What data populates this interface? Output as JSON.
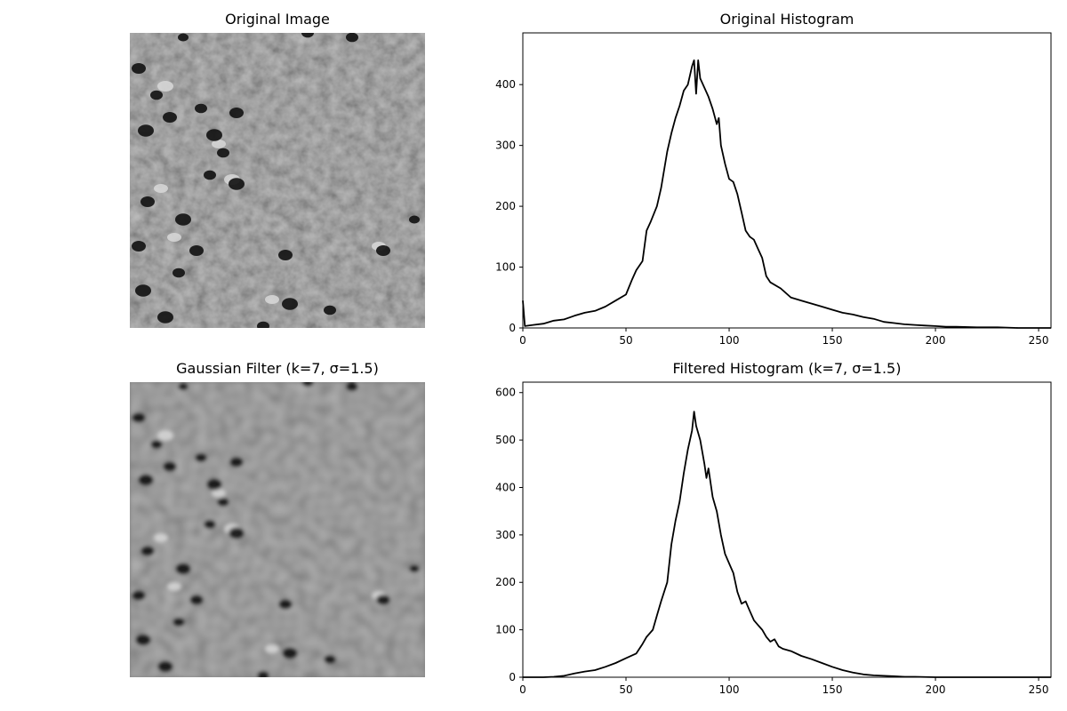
{
  "panels": {
    "original_image": {
      "title": "Original Image"
    },
    "gaussian_image": {
      "title": "Gaussian Filter (k=7, σ=1.5)"
    }
  },
  "chart_data": [
    {
      "type": "line",
      "title": "Original Histogram",
      "xlabel": "",
      "ylabel": "",
      "xlim": [
        0,
        256
      ],
      "ylim": [
        0,
        485
      ],
      "xticks": [
        0,
        50,
        100,
        150,
        200,
        250
      ],
      "yticks": [
        0,
        100,
        200,
        300,
        400
      ],
      "grid": false,
      "line_color": "#000000",
      "series": [
        {
          "points": [
            [
              0,
              45
            ],
            [
              1,
              3
            ],
            [
              5,
              5
            ],
            [
              10,
              7
            ],
            [
              15,
              12
            ],
            [
              20,
              14
            ],
            [
              25,
              20
            ],
            [
              30,
              25
            ],
            [
              35,
              28
            ],
            [
              40,
              35
            ],
            [
              45,
              45
            ],
            [
              50,
              55
            ],
            [
              53,
              80
            ],
            [
              55,
              95
            ],
            [
              58,
              110
            ],
            [
              60,
              160
            ],
            [
              62,
              175
            ],
            [
              65,
              200
            ],
            [
              67,
              230
            ],
            [
              70,
              290
            ],
            [
              72,
              320
            ],
            [
              74,
              345
            ],
            [
              76,
              365
            ],
            [
              78,
              390
            ],
            [
              80,
              400
            ],
            [
              82,
              430
            ],
            [
              83,
              440
            ],
            [
              84,
              385
            ],
            [
              85,
              440
            ],
            [
              86,
              410
            ],
            [
              88,
              395
            ],
            [
              90,
              380
            ],
            [
              92,
              360
            ],
            [
              94,
              335
            ],
            [
              95,
              345
            ],
            [
              96,
              300
            ],
            [
              98,
              270
            ],
            [
              100,
              245
            ],
            [
              102,
              240
            ],
            [
              104,
              220
            ],
            [
              106,
              190
            ],
            [
              108,
              160
            ],
            [
              110,
              150
            ],
            [
              112,
              145
            ],
            [
              114,
              130
            ],
            [
              116,
              115
            ],
            [
              118,
              85
            ],
            [
              120,
              75
            ],
            [
              125,
              65
            ],
            [
              130,
              50
            ],
            [
              135,
              45
            ],
            [
              140,
              40
            ],
            [
              145,
              35
            ],
            [
              150,
              30
            ],
            [
              155,
              25
            ],
            [
              160,
              22
            ],
            [
              165,
              18
            ],
            [
              170,
              15
            ],
            [
              175,
              10
            ],
            [
              180,
              8
            ],
            [
              185,
              6
            ],
            [
              190,
              5
            ],
            [
              195,
              4
            ],
            [
              200,
              3
            ],
            [
              205,
              2
            ],
            [
              210,
              2
            ],
            [
              220,
              1
            ],
            [
              230,
              1
            ],
            [
              240,
              0
            ],
            [
              256,
              0
            ]
          ]
        }
      ]
    },
    {
      "type": "line",
      "title": "Filtered Histogram (k=7, σ=1.5)",
      "xlabel": "",
      "ylabel": "",
      "xlim": [
        0,
        256
      ],
      "ylim": [
        0,
        622
      ],
      "xticks": [
        0,
        50,
        100,
        150,
        200,
        250
      ],
      "yticks": [
        0,
        100,
        200,
        300,
        400,
        500,
        600
      ],
      "grid": false,
      "line_color": "#000000",
      "series": [
        {
          "points": [
            [
              0,
              0
            ],
            [
              10,
              0
            ],
            [
              15,
              1
            ],
            [
              20,
              3
            ],
            [
              25,
              8
            ],
            [
              30,
              12
            ],
            [
              35,
              15
            ],
            [
              40,
              22
            ],
            [
              45,
              30
            ],
            [
              50,
              40
            ],
            [
              55,
              50
            ],
            [
              58,
              70
            ],
            [
              60,
              85
            ],
            [
              63,
              100
            ],
            [
              65,
              130
            ],
            [
              67,
              160
            ],
            [
              70,
              200
            ],
            [
              72,
              280
            ],
            [
              74,
              330
            ],
            [
              76,
              370
            ],
            [
              78,
              430
            ],
            [
              80,
              480
            ],
            [
              82,
              520
            ],
            [
              83,
              560
            ],
            [
              84,
              530
            ],
            [
              86,
              500
            ],
            [
              88,
              450
            ],
            [
              89,
              420
            ],
            [
              90,
              440
            ],
            [
              92,
              380
            ],
            [
              94,
              350
            ],
            [
              96,
              300
            ],
            [
              98,
              260
            ],
            [
              100,
              240
            ],
            [
              102,
              220
            ],
            [
              104,
              180
            ],
            [
              106,
              155
            ],
            [
              108,
              160
            ],
            [
              110,
              140
            ],
            [
              112,
              120
            ],
            [
              114,
              110
            ],
            [
              116,
              100
            ],
            [
              118,
              85
            ],
            [
              120,
              75
            ],
            [
              122,
              80
            ],
            [
              124,
              65
            ],
            [
              126,
              60
            ],
            [
              130,
              55
            ],
            [
              135,
              45
            ],
            [
              140,
              38
            ],
            [
              145,
              30
            ],
            [
              150,
              22
            ],
            [
              155,
              15
            ],
            [
              160,
              10
            ],
            [
              165,
              6
            ],
            [
              170,
              4
            ],
            [
              175,
              3
            ],
            [
              180,
              2
            ],
            [
              185,
              1
            ],
            [
              190,
              1
            ],
            [
              200,
              0
            ],
            [
              256,
              0
            ]
          ]
        }
      ]
    }
  ]
}
